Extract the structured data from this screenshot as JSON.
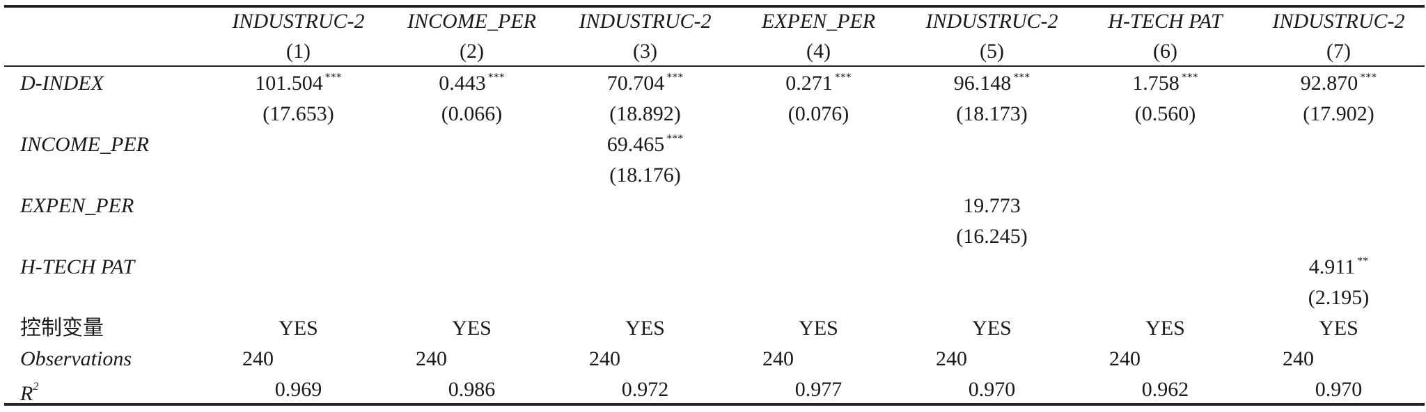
{
  "table": {
    "column_headers": [
      "INDUSTRUC-2",
      "INCOME_PER",
      "INDUSTRUC-2",
      "EXPEN_PER",
      "INDUSTRUC-2",
      "H-TECH PAT",
      "INDUSTRUC-2"
    ],
    "column_numbers": [
      "(1)",
      "(2)",
      "(3)",
      "(4)",
      "(5)",
      "(6)",
      "(7)"
    ],
    "rows": [
      {
        "label": "D-INDEX",
        "italic": true,
        "cells": [
          {
            "v": "101.504",
            "s": "***"
          },
          {
            "v": "0.443",
            "s": "***"
          },
          {
            "v": "70.704",
            "s": "***"
          },
          {
            "v": "0.271",
            "s": "***"
          },
          {
            "v": "96.148",
            "s": "***"
          },
          {
            "v": "1.758",
            "s": "***"
          },
          {
            "v": "92.870",
            "s": "***"
          }
        ]
      },
      {
        "label": "",
        "cells": [
          {
            "v": "(17.653)"
          },
          {
            "v": "(0.066)"
          },
          {
            "v": "(18.892)"
          },
          {
            "v": "(0.076)"
          },
          {
            "v": "(18.173)"
          },
          {
            "v": "(0.560)"
          },
          {
            "v": "(17.902)"
          }
        ]
      },
      {
        "label": "INCOME_PER",
        "italic": true,
        "cells": [
          {},
          {},
          {
            "v": "69.465",
            "s": "***"
          },
          {},
          {},
          {},
          {}
        ]
      },
      {
        "label": "",
        "cells": [
          {},
          {},
          {
            "v": "(18.176)"
          },
          {},
          {},
          {},
          {}
        ]
      },
      {
        "label": "EXPEN_PER",
        "italic": true,
        "cells": [
          {},
          {},
          {},
          {},
          {
            "v": "19.773"
          },
          {},
          {}
        ]
      },
      {
        "label": "",
        "cells": [
          {},
          {},
          {},
          {},
          {
            "v": "(16.245)"
          },
          {},
          {}
        ]
      },
      {
        "label": "H-TECH PAT",
        "italic": true,
        "cells": [
          {},
          {},
          {},
          {},
          {},
          {},
          {
            "v": "4.911",
            "s": "**"
          }
        ]
      },
      {
        "label": "",
        "cells": [
          {},
          {},
          {},
          {},
          {},
          {},
          {
            "v": "(2.195)"
          }
        ]
      },
      {
        "label": "控制变量",
        "cells": [
          {
            "v": "YES"
          },
          {
            "v": "YES"
          },
          {
            "v": "YES"
          },
          {
            "v": "YES"
          },
          {
            "v": "YES"
          },
          {
            "v": "YES"
          },
          {
            "v": "YES"
          }
        ]
      },
      {
        "label": "Observations",
        "italic": true,
        "align": "left",
        "cells": [
          {
            "v": "240"
          },
          {
            "v": "240"
          },
          {
            "v": "240"
          },
          {
            "v": "240"
          },
          {
            "v": "240"
          },
          {
            "v": "240"
          },
          {
            "v": "240"
          }
        ]
      },
      {
        "label": "R",
        "sup": "2",
        "italic": true,
        "cells": [
          {
            "v": "0.969"
          },
          {
            "v": "0.986"
          },
          {
            "v": "0.972"
          },
          {
            "v": "0.977"
          },
          {
            "v": "0.970"
          },
          {
            "v": "0.962"
          },
          {
            "v": "0.970"
          }
        ]
      }
    ]
  }
}
